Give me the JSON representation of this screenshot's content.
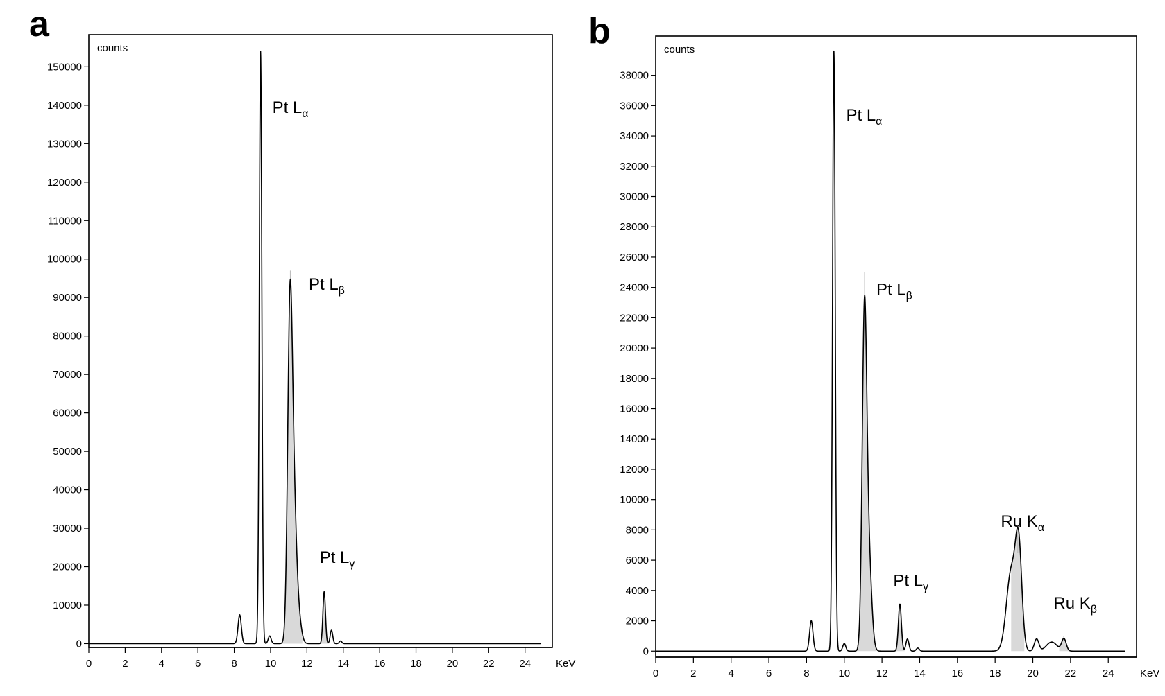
{
  "chart_data": [
    {
      "panel": "a",
      "type": "line",
      "ylabel": "counts",
      "xlabel": "KeV",
      "xlim": [
        0,
        25.5
      ],
      "ylim": [
        -1000,
        158000
      ],
      "x_ticks": [
        0,
        2,
        4,
        6,
        8,
        10,
        12,
        14,
        16,
        18,
        20,
        22,
        24
      ],
      "y_ticks": [
        0,
        10000,
        20000,
        30000,
        40000,
        50000,
        60000,
        70000,
        80000,
        90000,
        100000,
        110000,
        120000,
        130000,
        140000,
        150000
      ],
      "peaks": [
        {
          "x": 8.3,
          "y": 7500,
          "w": 0.09
        },
        {
          "x": 9.45,
          "y": 154000,
          "w": 0.07
        },
        {
          "x": 9.95,
          "y": 2000,
          "w": 0.08
        },
        {
          "x": 11.07,
          "y": 86000,
          "w": 0.13
        },
        {
          "x": 11.3,
          "y": 30000,
          "w": 0.14
        },
        {
          "x": 11.55,
          "y": 6000,
          "w": 0.15
        },
        {
          "x": 12.95,
          "y": 13500,
          "w": 0.07
        },
        {
          "x": 13.35,
          "y": 3500,
          "w": 0.07
        },
        {
          "x": 13.85,
          "y": 700,
          "w": 0.07
        }
      ],
      "shaded_peaks": [
        {
          "x0": 10.55,
          "x1": 11.75,
          "top": 97000
        },
        {
          "x0": 12.7,
          "x1": 13.2,
          "top": 13500
        }
      ],
      "annotations": [
        {
          "element": "Pt L",
          "sub": "α",
          "x": 10.1,
          "y": 138000
        },
        {
          "element": "Pt L",
          "sub": "β",
          "x": 12.1,
          "y": 92000
        },
        {
          "element": "Pt L",
          "sub": "γ",
          "x": 12.7,
          "y": 21000
        }
      ]
    },
    {
      "panel": "b",
      "type": "line",
      "ylabel": "counts",
      "xlabel": "KeV",
      "xlim": [
        0,
        25.5
      ],
      "ylim": [
        -400,
        40500
      ],
      "x_ticks": [
        0,
        2,
        4,
        6,
        8,
        10,
        12,
        14,
        16,
        18,
        20,
        22,
        24
      ],
      "y_ticks": [
        0,
        2000,
        4000,
        6000,
        8000,
        10000,
        12000,
        14000,
        16000,
        18000,
        20000,
        22000,
        24000,
        26000,
        28000,
        30000,
        32000,
        34000,
        36000,
        38000
      ],
      "peaks": [
        {
          "x": 8.25,
          "y": 2000,
          "w": 0.09
        },
        {
          "x": 9.45,
          "y": 39600,
          "w": 0.07
        },
        {
          "x": 10.0,
          "y": 500,
          "w": 0.08
        },
        {
          "x": 11.07,
          "y": 21500,
          "w": 0.12
        },
        {
          "x": 11.3,
          "y": 6000,
          "w": 0.15
        },
        {
          "x": 12.95,
          "y": 3100,
          "w": 0.08
        },
        {
          "x": 13.35,
          "y": 800,
          "w": 0.08
        },
        {
          "x": 13.9,
          "y": 200,
          "w": 0.08
        },
        {
          "x": 18.85,
          "y": 5200,
          "w": 0.25
        },
        {
          "x": 19.25,
          "y": 6500,
          "w": 0.17
        },
        {
          "x": 20.2,
          "y": 800,
          "w": 0.12
        },
        {
          "x": 21.0,
          "y": 600,
          "w": 0.28
        },
        {
          "x": 21.65,
          "y": 800,
          "w": 0.12
        }
      ],
      "shaded_peaks": [
        {
          "x0": 10.6,
          "x1": 11.7,
          "top": 25000
        },
        {
          "x0": 12.7,
          "x1": 13.2,
          "top": 3100
        },
        {
          "x0": 18.85,
          "x1": 19.55,
          "top": 6500
        },
        {
          "x0": 21.4,
          "x1": 21.9,
          "top": 1000
        }
      ],
      "annotations": [
        {
          "element": "Pt L",
          "sub": "α",
          "x": 10.1,
          "y": 35000
        },
        {
          "element": "Pt L",
          "sub": "β",
          "x": 11.7,
          "y": 23500
        },
        {
          "element": "Pt L",
          "sub": "γ",
          "x": 12.6,
          "y": 4300
        },
        {
          "element": "Ru K",
          "sub": "α",
          "x": 18.3,
          "y": 8200
        },
        {
          "element": "Ru K",
          "sub": "β",
          "x": 21.1,
          "y": 2800
        }
      ]
    }
  ]
}
